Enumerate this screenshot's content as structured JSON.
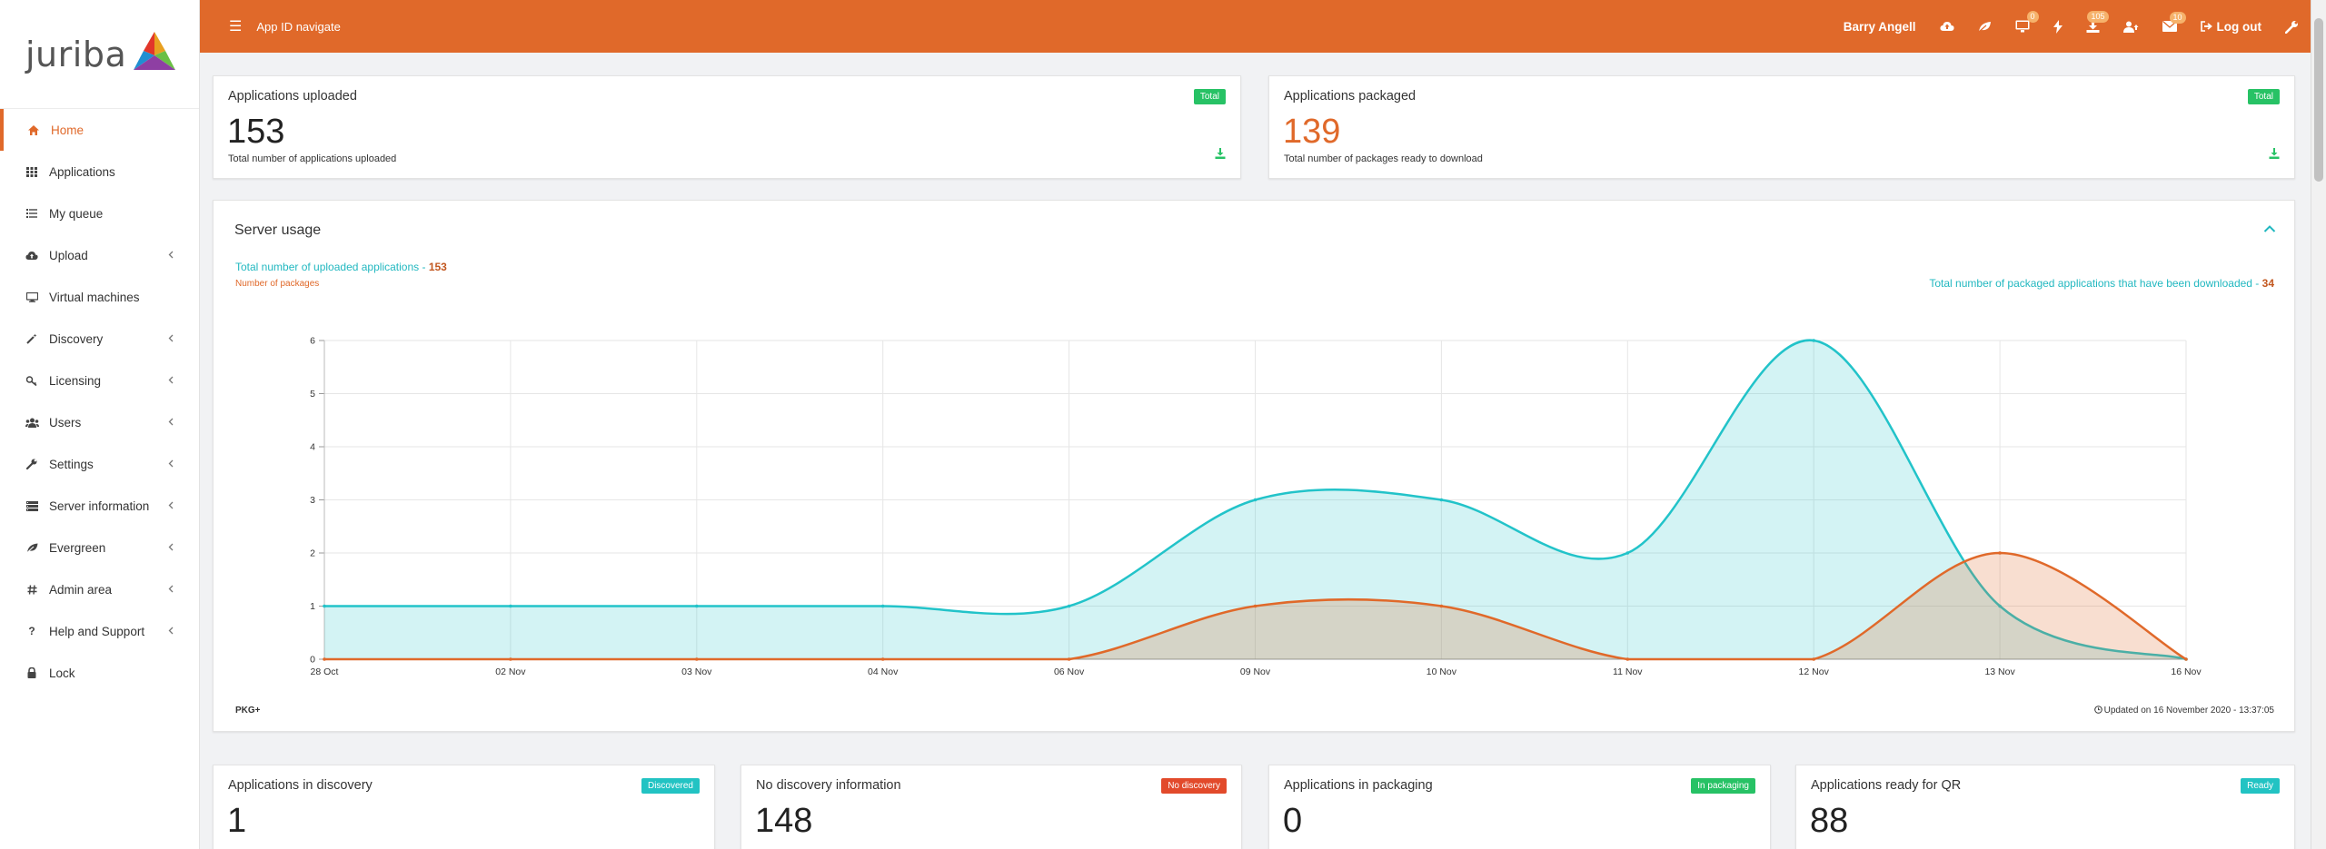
{
  "sidebar": {
    "logo_text": "juriba",
    "items": [
      {
        "label": "Home",
        "icon": "home-icon",
        "active": true,
        "chevron": false
      },
      {
        "label": "Applications",
        "icon": "grid-icon",
        "active": false,
        "chevron": false
      },
      {
        "label": "My queue",
        "icon": "list-icon",
        "active": false,
        "chevron": false
      },
      {
        "label": "Upload",
        "icon": "cloud-upload-icon",
        "active": false,
        "chevron": true
      },
      {
        "label": "Virtual machines",
        "icon": "monitor-icon",
        "active": false,
        "chevron": false
      },
      {
        "label": "Discovery",
        "icon": "magic-wand-icon",
        "active": false,
        "chevron": true
      },
      {
        "label": "Licensing",
        "icon": "key-icon",
        "active": false,
        "chevron": true
      },
      {
        "label": "Users",
        "icon": "users-icon",
        "active": false,
        "chevron": true
      },
      {
        "label": "Settings",
        "icon": "wrench-icon",
        "active": false,
        "chevron": true
      },
      {
        "label": "Server information",
        "icon": "server-icon",
        "active": false,
        "chevron": true
      },
      {
        "label": "Evergreen",
        "icon": "leaf-icon",
        "active": false,
        "chevron": true
      },
      {
        "label": "Admin area",
        "icon": "hash-icon",
        "active": false,
        "chevron": true
      },
      {
        "label": "Help and Support",
        "icon": "question-icon",
        "active": false,
        "chevron": true
      },
      {
        "label": "Lock",
        "icon": "lock-icon",
        "active": false,
        "chevron": false
      }
    ]
  },
  "topbar": {
    "menu_icon": "hamburger-icon",
    "title": "App ID navigate",
    "user_name": "Barry Angell",
    "badges": {
      "monitors": "0",
      "downloads": "105",
      "messages": "10"
    },
    "logout_label": "Log out",
    "accent": "#e0692a"
  },
  "cards_top": [
    {
      "title": "Applications uploaded",
      "pill": "Total",
      "value": "153",
      "subtitle": "Total number of applications uploaded"
    },
    {
      "title": "Applications packaged",
      "pill": "Total",
      "value": "139",
      "subtitle": "Total number of packages ready to download"
    }
  ],
  "server_usage": {
    "title": "Server usage",
    "legend_uploaded_label": "Total number of uploaded applications - ",
    "legend_uploaded_value": "153",
    "legend_packages_label": "Number of packages",
    "legend_downloaded_label": "Total number of packaged applications that have been downloaded - ",
    "legend_downloaded_value": "34",
    "footer_left": "PKG+",
    "footer_right": "Updated on 16 November 2020 - 13:37:05"
  },
  "chart_data": {
    "type": "area",
    "categories": [
      "28 Oct",
      "02 Nov",
      "03 Nov",
      "04 Nov",
      "06 Nov",
      "09 Nov",
      "10 Nov",
      "11 Nov",
      "12 Nov",
      "13 Nov",
      "16 Nov"
    ],
    "series": [
      {
        "name": "Total number of uploaded applications",
        "color": "#22c3c9",
        "values": [
          1,
          1,
          1,
          1,
          1,
          3,
          3,
          2,
          6,
          1,
          0
        ]
      },
      {
        "name": "Number of packages",
        "color": "#e0692a",
        "values": [
          0,
          0,
          0,
          0,
          0,
          1,
          1,
          0,
          0,
          2,
          0
        ]
      }
    ],
    "yticks": [
      0,
      1,
      2,
      3,
      4,
      5,
      6
    ],
    "ylim": [
      0,
      6
    ],
    "grid": true
  },
  "cards_bottom": [
    {
      "title": "Applications in discovery",
      "pill": "Discovered",
      "pill_color": "teal",
      "value": "1"
    },
    {
      "title": "No discovery information",
      "pill": "No discovery",
      "pill_color": "red",
      "value": "148"
    },
    {
      "title": "Applications in packaging",
      "pill": "In packaging",
      "pill_color": "green",
      "value": "0"
    },
    {
      "title": "Applications ready for QR",
      "pill": "Ready",
      "pill_color": "teal",
      "value": "88"
    }
  ]
}
